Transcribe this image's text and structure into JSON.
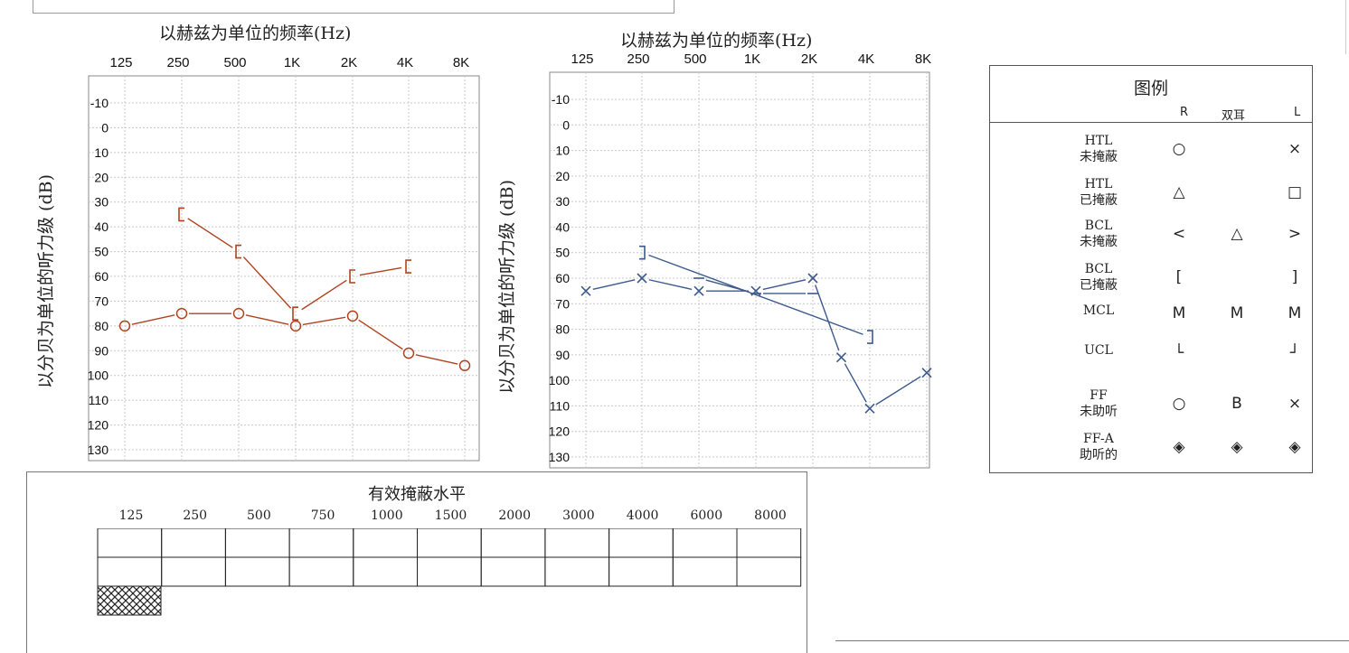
{
  "chart_data": [
    {
      "type": "line",
      "title": "以赫兹为单位的频率(Hz)",
      "ylabel": "以分贝为单位的听力级 (dB)",
      "categories": [
        "125",
        "250",
        "500",
        "1K",
        "2K",
        "4K",
        "8K"
      ],
      "y_ticks": [
        "-10",
        "0",
        "10",
        "20",
        "30",
        "40",
        "50",
        "60",
        "70",
        "80",
        "90",
        "100",
        "110",
        "120",
        "130"
      ],
      "ylim": [
        -20,
        140
      ],
      "y_inverted": true,
      "grid": true,
      "series": [
        {
          "symbol": "circle",
          "color": "#b0431f",
          "x": [
            "125",
            "250",
            "500",
            "1K",
            "2K",
            "4K",
            "8K"
          ],
          "values": [
            80,
            75,
            75,
            80,
            76,
            91,
            96
          ]
        },
        {
          "symbol": "bracket-left",
          "color": "#b0431f",
          "x": [
            "250",
            "500",
            "1K",
            "2K",
            "4K"
          ],
          "values": [
            35,
            50,
            75,
            60,
            56
          ]
        }
      ]
    },
    {
      "type": "line",
      "title": "以赫兹为单位的频率(Hz)",
      "ylabel": "以分贝为单位的听力级 (dB)",
      "categories": [
        "125",
        "250",
        "500",
        "1K",
        "2K",
        "4K",
        "8K"
      ],
      "y_ticks": [
        "-10",
        "0",
        "10",
        "20",
        "30",
        "40",
        "50",
        "60",
        "70",
        "80",
        "90",
        "100",
        "110",
        "120",
        "130"
      ],
      "ylim": [
        -20,
        140
      ],
      "y_inverted": true,
      "grid": true,
      "series": [
        {
          "symbol": "cross",
          "color": "#3c5a8c",
          "x": [
            "125",
            "250",
            "500",
            "1K",
            "2K",
            "3K",
            "4K",
            "8K"
          ],
          "values": [
            65,
            60,
            65,
            65,
            60,
            91,
            111,
            97
          ]
        },
        {
          "symbol": "bracket-right",
          "color": "#3c5a8c",
          "x": [
            "250",
            "4K"
          ],
          "values": [
            50,
            83
          ]
        },
        {
          "symbol": "dash",
          "color": "#3c5a8c",
          "x": [
            "500",
            "1K",
            "2K"
          ],
          "values": [
            60,
            66,
            66
          ]
        }
      ]
    }
  ],
  "legend": {
    "title": "图例",
    "columns": [
      "R",
      "双耳",
      "L"
    ],
    "rows": [
      {
        "label1": "HTL",
        "label2": "未掩蔽",
        "r": "○",
        "b": "",
        "l": "×"
      },
      {
        "label1": "HTL",
        "label2": "已掩蔽",
        "r": "△",
        "b": "",
        "l": "□"
      },
      {
        "label1": "BCL",
        "label2": "未掩蔽",
        "r": "<",
        "b": "△",
        "l": ">"
      },
      {
        "label1": "BCL",
        "label2": "已掩蔽",
        "r": "[",
        "b": "",
        "l": "]"
      },
      {
        "label1": "MCL",
        "label2": "",
        "r": "M",
        "b": "M",
        "l": "M"
      },
      {
        "label1": "UCL",
        "label2": "",
        "r": "└",
        "b": "",
        "l": "┘"
      },
      {
        "label1": "FF",
        "label2": "未助听",
        "r": "○",
        "b": "B",
        "l": "×"
      },
      {
        "label1": "FF-A",
        "label2": "助听的",
        "r": "◈",
        "b": "◈",
        "l": "◈"
      }
    ]
  },
  "masking": {
    "title": "有效掩蔽水平",
    "frequencies": [
      "125",
      "250",
      "500",
      "750",
      "1000",
      "1500",
      "2000",
      "3000",
      "4000",
      "6000",
      "8000"
    ]
  },
  "colors": {
    "right_ear": "#b0431f",
    "left_ear": "#3c5a8c",
    "grid": "#c8c8c8"
  }
}
